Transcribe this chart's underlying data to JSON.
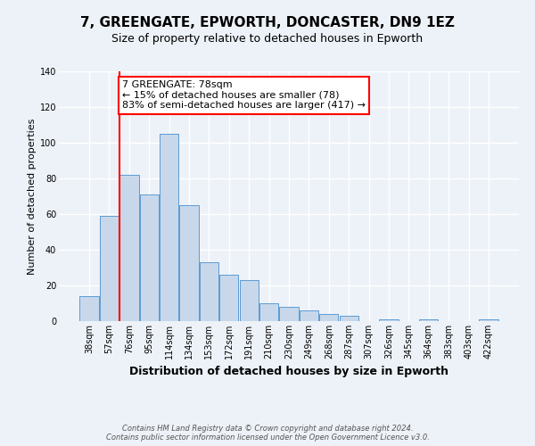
{
  "title": "7, GREENGATE, EPWORTH, DONCASTER, DN9 1EZ",
  "subtitle": "Size of property relative to detached houses in Epworth",
  "xlabel": "Distribution of detached houses by size in Epworth",
  "ylabel": "Number of detached properties",
  "bar_vals": [
    14,
    59,
    82,
    71,
    105,
    65,
    33,
    26,
    23,
    10,
    8,
    6,
    4,
    3,
    0,
    1,
    0,
    1,
    0,
    0,
    1
  ],
  "categories": [
    "38sqm",
    "57sqm",
    "76sqm",
    "95sqm",
    "114sqm",
    "134sqm",
    "153sqm",
    "172sqm",
    "191sqm",
    "210sqm",
    "230sqm",
    "249sqm",
    "268sqm",
    "287sqm",
    "307sqm",
    "326sqm",
    "345sqm",
    "364sqm",
    "383sqm",
    "403sqm",
    "422sqm"
  ],
  "bar_color": "#c8d8ea",
  "bar_edge_color": "#5b9bd5",
  "annotation_text": "7 GREENGATE: 78sqm\n← 15% of detached houses are smaller (78)\n83% of semi-detached houses are larger (417) →",
  "annotation_box_color": "white",
  "annotation_box_edge": "red",
  "ylim": [
    0,
    140
  ],
  "yticks": [
    0,
    20,
    40,
    60,
    80,
    100,
    120,
    140
  ],
  "footer_line1": "Contains HM Land Registry data © Crown copyright and database right 2024.",
  "footer_line2": "Contains public sector information licensed under the Open Government Licence v3.0.",
  "background_color": "#edf2f8",
  "plot_background": "#edf2f8",
  "grid_color": "white",
  "title_fontsize": 11,
  "subtitle_fontsize": 9,
  "ylabel_fontsize": 8,
  "xlabel_fontsize": 9,
  "tick_fontsize": 7,
  "footer_fontsize": 6,
  "annotation_fontsize": 8
}
